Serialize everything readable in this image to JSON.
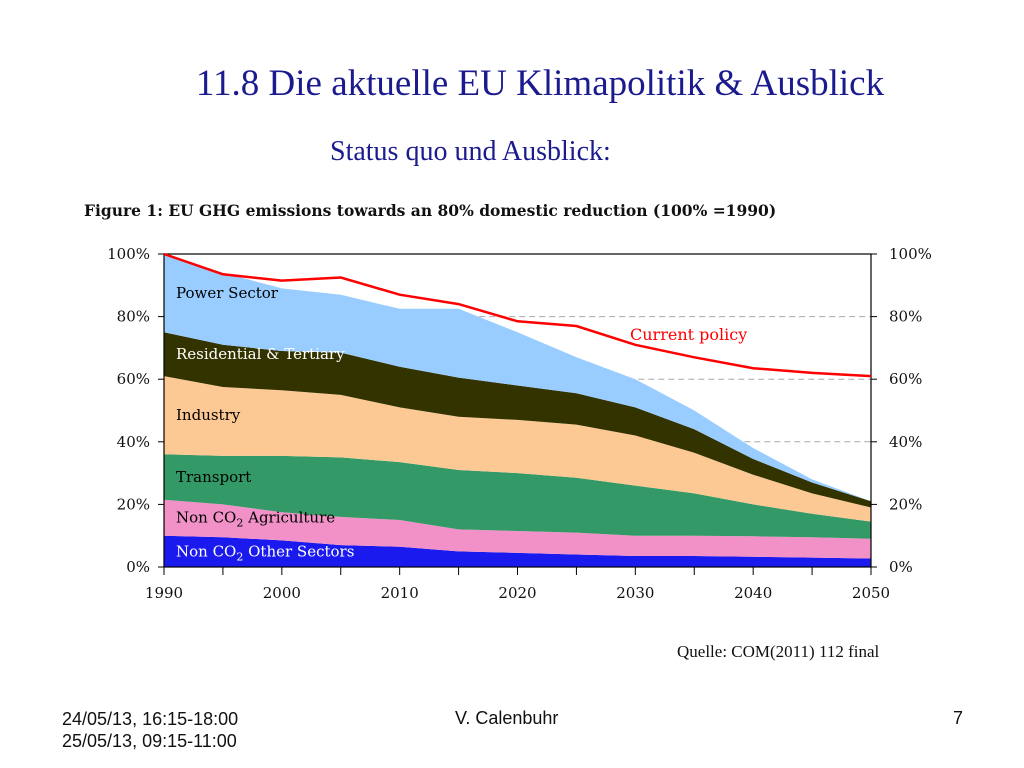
{
  "slide": {
    "title": "11.8 Die aktuelle EU Klimapolitik & Ausblick",
    "subtitle": "Status quo und Ausblick:",
    "source": "Quelle: COM(2011) 112 final"
  },
  "footer": {
    "date_line1": "24/05/13, 16:15-18:00",
    "date_line2": "25/05/13, 09:15-11:00",
    "author": "V. Calenbuhr",
    "page_number": "7"
  },
  "chart_data": {
    "type": "area",
    "stacked": true,
    "title": "Figure 1: EU GHG emissions towards an 80% domestic reduction (100% =1990)",
    "x": [
      1990,
      1995,
      2000,
      2005,
      2010,
      2015,
      2020,
      2025,
      2030,
      2035,
      2040,
      2045,
      2050
    ],
    "x_ticks": [
      "1990",
      "2000",
      "2010",
      "2020",
      "2030",
      "2040",
      "2050"
    ],
    "y_ticks": [
      "0%",
      "20%",
      "40%",
      "60%",
      "80%",
      "100%"
    ],
    "ylim": [
      0,
      100
    ],
    "xlim": [
      1990,
      2050
    ],
    "grid": "horizontal dashed",
    "right_axis": true,
    "series": [
      {
        "name": "Non CO2 Other Sectors",
        "label_sub": "2",
        "color": "#1a1aef",
        "values": [
          10,
          9.5,
          8.5,
          7,
          6.5,
          5,
          4.5,
          4,
          3.5,
          3.5,
          3.3,
          3,
          2.7
        ]
      },
      {
        "name": "Non CO2 Agriculture",
        "label_sub": "2",
        "color": "#f291c7",
        "values": [
          11.5,
          10.5,
          9,
          9,
          8.5,
          7,
          7,
          7,
          6.5,
          6.5,
          6.5,
          6.5,
          6.3
        ]
      },
      {
        "name": "Transport",
        "label_sub": "",
        "color": "#339966",
        "values": [
          14.5,
          15.5,
          18,
          19,
          18.5,
          19,
          18.5,
          17.5,
          16,
          13.5,
          10.2,
          7.5,
          5.5
        ]
      },
      {
        "name": "Industry",
        "label_sub": "",
        "color": "#fcc994",
        "values": [
          25,
          22,
          21,
          20,
          17.5,
          17,
          17,
          17,
          16,
          13,
          9.5,
          6.5,
          4.5
        ]
      },
      {
        "name": "Residential & Tertiary",
        "label_sub": "",
        "color": "#333300",
        "values": [
          14,
          13.5,
          12.5,
          13.5,
          13,
          12.5,
          11,
          10,
          9,
          7.5,
          5,
          3.5,
          2
        ]
      },
      {
        "name": "Power Sector",
        "label_sub": "",
        "color": "#99ccff",
        "values": [
          25,
          23,
          20,
          18.5,
          18.5,
          22,
          17,
          11.5,
          9,
          6,
          3.5,
          1,
          0
        ]
      }
    ],
    "line_series": [
      {
        "name": "Current policy",
        "color": "#ff0000",
        "values": [
          100,
          93.5,
          91.5,
          92.5,
          87,
          84,
          78.5,
          77,
          71,
          67,
          63.5,
          62,
          61
        ]
      }
    ]
  }
}
